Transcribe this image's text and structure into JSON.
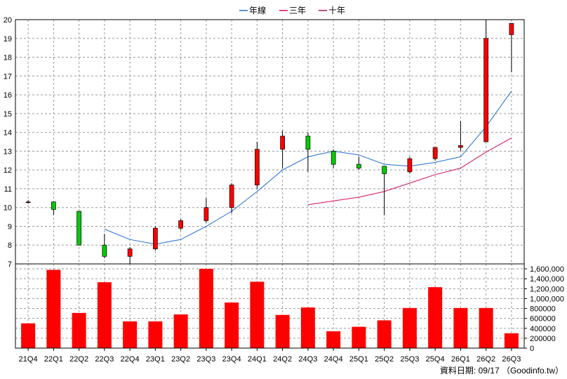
{
  "chart_data": {
    "type": "candlestick",
    "categories": [
      "21Q4",
      "22Q1",
      "22Q2",
      "22Q3",
      "22Q4",
      "23Q1",
      "23Q2",
      "23Q3",
      "23Q4",
      "24Q1",
      "24Q2",
      "24Q3",
      "24Q4",
      "25Q1",
      "25Q2",
      "25Q3",
      "25Q4",
      "26Q1",
      "26Q2",
      "26Q3"
    ],
    "price": {
      "ylim": [
        7,
        20
      ],
      "ticks": [
        7,
        8,
        9,
        10,
        11,
        12,
        13,
        14,
        15,
        16,
        17,
        18,
        19,
        20
      ],
      "candles": [
        {
          "o": 10.3,
          "h": 10.4,
          "l": 10.2,
          "c": 10.3
        },
        {
          "o": 10.3,
          "h": 10.3,
          "l": 9.6,
          "c": 9.9
        },
        {
          "o": 9.8,
          "h": 9.8,
          "l": 8.0,
          "c": 8.0
        },
        {
          "o": 8.0,
          "h": 8.6,
          "l": 7.3,
          "c": 7.4
        },
        {
          "o": 7.4,
          "h": 7.9,
          "l": 7.0,
          "c": 7.8
        },
        {
          "o": 7.8,
          "h": 9.0,
          "l": 7.7,
          "c": 8.9
        },
        {
          "o": 8.9,
          "h": 9.4,
          "l": 8.8,
          "c": 9.3
        },
        {
          "o": 9.3,
          "h": 10.5,
          "l": 9.2,
          "c": 10.0
        },
        {
          "o": 10.0,
          "h": 11.3,
          "l": 9.7,
          "c": 11.2
        },
        {
          "o": 11.2,
          "h": 13.5,
          "l": 11.0,
          "c": 13.1
        },
        {
          "o": 13.1,
          "h": 14.1,
          "l": 12.1,
          "c": 13.8
        },
        {
          "o": 13.8,
          "h": 14.0,
          "l": 11.9,
          "c": 13.1
        },
        {
          "o": 13.0,
          "h": 13.1,
          "l": 12.1,
          "c": 12.3
        },
        {
          "o": 12.3,
          "h": 12.7,
          "l": 12.0,
          "c": 12.1
        },
        {
          "o": 12.2,
          "h": 12.2,
          "l": 9.6,
          "c": 11.8
        },
        {
          "o": 11.9,
          "h": 12.7,
          "l": 11.8,
          "c": 12.6
        },
        {
          "o": 12.6,
          "h": 13.2,
          "l": 12.5,
          "c": 13.2
        },
        {
          "o": 13.2,
          "h": 14.6,
          "l": 13.0,
          "c": 13.3
        },
        {
          "o": 13.5,
          "h": 20.0,
          "l": 13.5,
          "c": 19.0
        },
        {
          "o": 19.2,
          "h": 19.8,
          "l": 17.2,
          "c": 19.8
        }
      ],
      "series": [
        {
          "name": "年線",
          "color": "#1f6fd0",
          "values": [
            null,
            null,
            null,
            8.85,
            8.3,
            8.05,
            8.3,
            9.0,
            9.8,
            10.85,
            12.0,
            12.7,
            13.0,
            12.8,
            12.3,
            12.2,
            12.4,
            12.7,
            14.3,
            16.2
          ]
        },
        {
          "name": "三年",
          "color": "#d0104a",
          "values": [
            null,
            null,
            null,
            null,
            null,
            null,
            null,
            null,
            null,
            null,
            null,
            10.15,
            10.35,
            10.55,
            10.85,
            11.3,
            11.75,
            12.1,
            12.95,
            13.7
          ]
        },
        {
          "name": "十年",
          "color": "#a01060",
          "values": [
            null,
            null,
            null,
            null,
            null,
            null,
            null,
            null,
            null,
            null,
            null,
            null,
            null,
            null,
            null,
            null,
            null,
            null,
            null,
            null
          ]
        }
      ]
    },
    "volume": {
      "ylim": [
        0,
        1700000
      ],
      "tick_labels": [
        "0",
        "200000",
        "400000",
        "600000",
        "800000",
        "1,000,000",
        "1,200,000",
        "1,400,000",
        "1,600,000"
      ],
      "tick_values": [
        0,
        200000,
        400000,
        600000,
        800000,
        1000000,
        1200000,
        1400000,
        1600000
      ],
      "color": "#ff0000",
      "values": [
        500000,
        1580000,
        710000,
        1330000,
        540000,
        540000,
        680000,
        1600000,
        920000,
        1340000,
        670000,
        820000,
        340000,
        430000,
        560000,
        810000,
        1230000,
        810000,
        810000,
        300000
      ]
    }
  },
  "footer_text": "資料日期: 09/17 （Goodinfo.tw）"
}
